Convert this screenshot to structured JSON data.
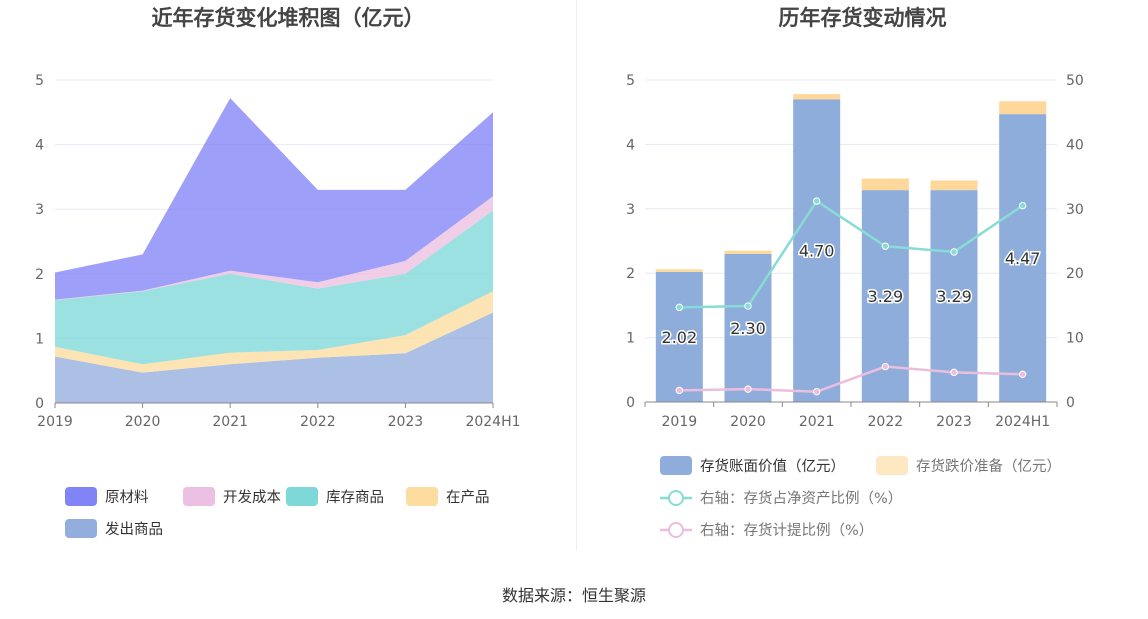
{
  "source_text": "数据来源：恒生聚源",
  "chart_data": [
    {
      "type": "area",
      "stacked": true,
      "title": "近年存货变化堆积图（亿元）",
      "categories": [
        "2019",
        "2020",
        "2021",
        "2022",
        "2023",
        "2024H1"
      ],
      "yticks": [
        "0",
        "1",
        "2",
        "3",
        "4",
        "5"
      ],
      "ylim": [
        0,
        5
      ],
      "grid": true,
      "legend_position": "bottom",
      "series": [
        {
          "name": "发出商品",
          "color": "#93aedc",
          "values": [
            0.72,
            0.47,
            0.6,
            0.7,
            0.77,
            1.4
          ]
        },
        {
          "name": "在产品",
          "color": "#fddca0",
          "values": [
            0.15,
            0.13,
            0.18,
            0.12,
            0.28,
            0.33
          ]
        },
        {
          "name": "库存商品",
          "color": "#7fd8d8",
          "values": [
            0.72,
            1.13,
            1.22,
            0.95,
            0.95,
            1.25
          ]
        },
        {
          "name": "开发成本",
          "color": "#ecc0e2",
          "values": [
            0.01,
            0.01,
            0.05,
            0.1,
            0.2,
            0.22
          ]
        },
        {
          "name": "原材料",
          "color": "#8184f6",
          "values": [
            0.42,
            0.56,
            2.67,
            1.43,
            1.1,
            1.3
          ]
        }
      ],
      "legend_order": [
        "原材料",
        "开发成本",
        "库存商品",
        "在产品",
        "发出商品"
      ]
    },
    {
      "type": "bar",
      "stacked": true,
      "title": "历年存货变动情况",
      "categories": [
        "2019",
        "2020",
        "2021",
        "2022",
        "2023",
        "2024H1"
      ],
      "yticks_left": [
        "0",
        "1",
        "2",
        "3",
        "4",
        "5"
      ],
      "yticks_right": [
        "0",
        "10",
        "20",
        "30",
        "40",
        "50"
      ],
      "ylim_left": [
        0,
        5
      ],
      "ylim_right": [
        0,
        50
      ],
      "grid": true,
      "legend_position": "bottom",
      "bars": [
        {
          "name": "存货账面价值（亿元）",
          "color": "#8eaddb",
          "values": [
            2.02,
            2.3,
            4.7,
            3.29,
            3.29,
            4.47
          ],
          "labels": [
            "2.02",
            "2.30",
            "4.70",
            "3.29",
            "3.29",
            "4.47"
          ]
        },
        {
          "name": "存货跌价准备（亿元）",
          "color": "#fdd89a",
          "values": [
            0.04,
            0.05,
            0.08,
            0.18,
            0.15,
            0.2
          ]
        }
      ],
      "lines": [
        {
          "name": "右轴：存货占净资产比例（%）",
          "color": "#88dcd6",
          "values": [
            14.7,
            14.9,
            31.2,
            24.2,
            23.3,
            30.5
          ]
        },
        {
          "name": "右轴：存货计提比例（%）",
          "color": "#ebbedd",
          "values": [
            1.8,
            2.0,
            1.6,
            5.5,
            4.6,
            4.3
          ]
        }
      ]
    }
  ]
}
